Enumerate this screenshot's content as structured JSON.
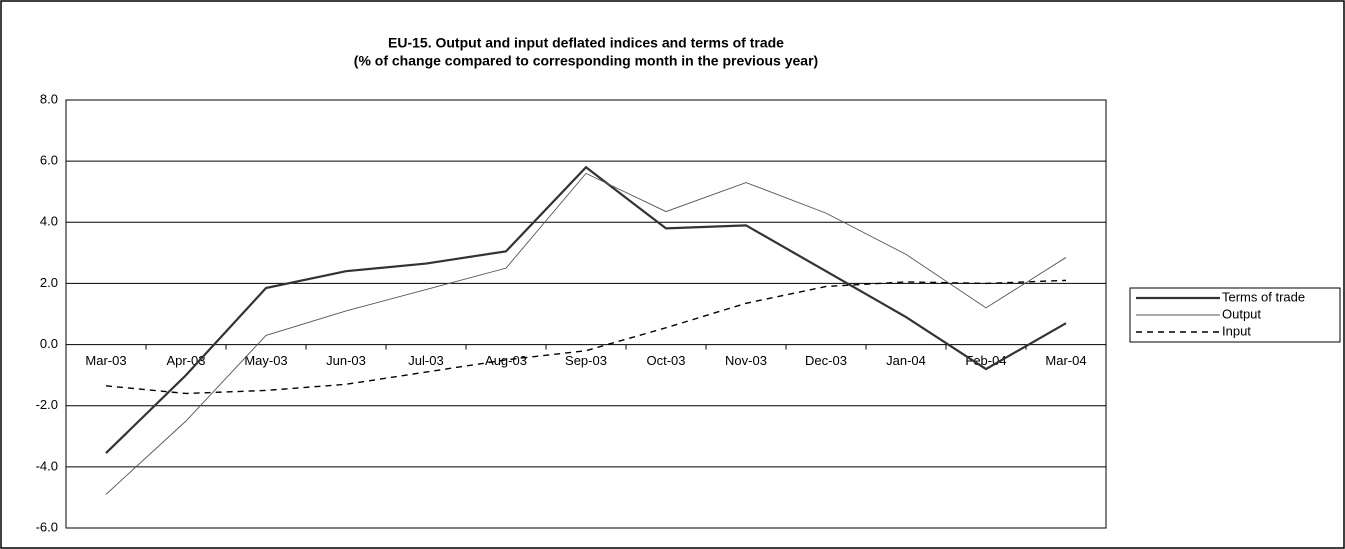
{
  "chart_data": {
    "type": "line",
    "title": "EU-15. Output and input deflated indices and terms of trade",
    "subtitle": "(% of change compared to corresponding month in the previous year)",
    "categories": [
      "Mar-03",
      "Apr-03",
      "May-03",
      "Jun-03",
      "Jul-03",
      "Aug-03",
      "Sep-03",
      "Oct-03",
      "Nov-03",
      "Dec-03",
      "Jan-04",
      "Feb-04",
      "Mar-04"
    ],
    "series": [
      {
        "name": "Terms of trade",
        "color": "#333333",
        "values": [
          -3.55,
          -1.0,
          1.85,
          2.4,
          2.65,
          3.05,
          5.8,
          3.8,
          3.9,
          2.4,
          0.9,
          -0.8,
          0.7
        ]
      },
      {
        "name": "Output",
        "color": "#555555",
        "values": [
          -4.9,
          -2.5,
          0.3,
          1.1,
          1.8,
          2.5,
          5.6,
          4.35,
          5.3,
          4.3,
          2.95,
          1.2,
          2.85
        ]
      },
      {
        "name": "Input",
        "color": "#000000",
        "values": [
          -1.35,
          -1.6,
          -1.5,
          -1.3,
          -0.9,
          -0.5,
          -0.2,
          0.55,
          1.35,
          1.9,
          2.05,
          2.0,
          2.1
        ]
      }
    ],
    "ylim": [
      -6,
      8
    ],
    "yticks": [
      {
        "value": -6,
        "label": "-6.0"
      },
      {
        "value": -4,
        "label": "-4.0"
      },
      {
        "value": -2,
        "label": "-2.0"
      },
      {
        "value": 0,
        "label": "0.0"
      },
      {
        "value": 2,
        "label": "2.0"
      },
      {
        "value": 4,
        "label": "4.0"
      },
      {
        "value": 6,
        "label": "6.0"
      },
      {
        "value": 8,
        "label": "8.0"
      }
    ],
    "grid": true,
    "legend": "right"
  }
}
